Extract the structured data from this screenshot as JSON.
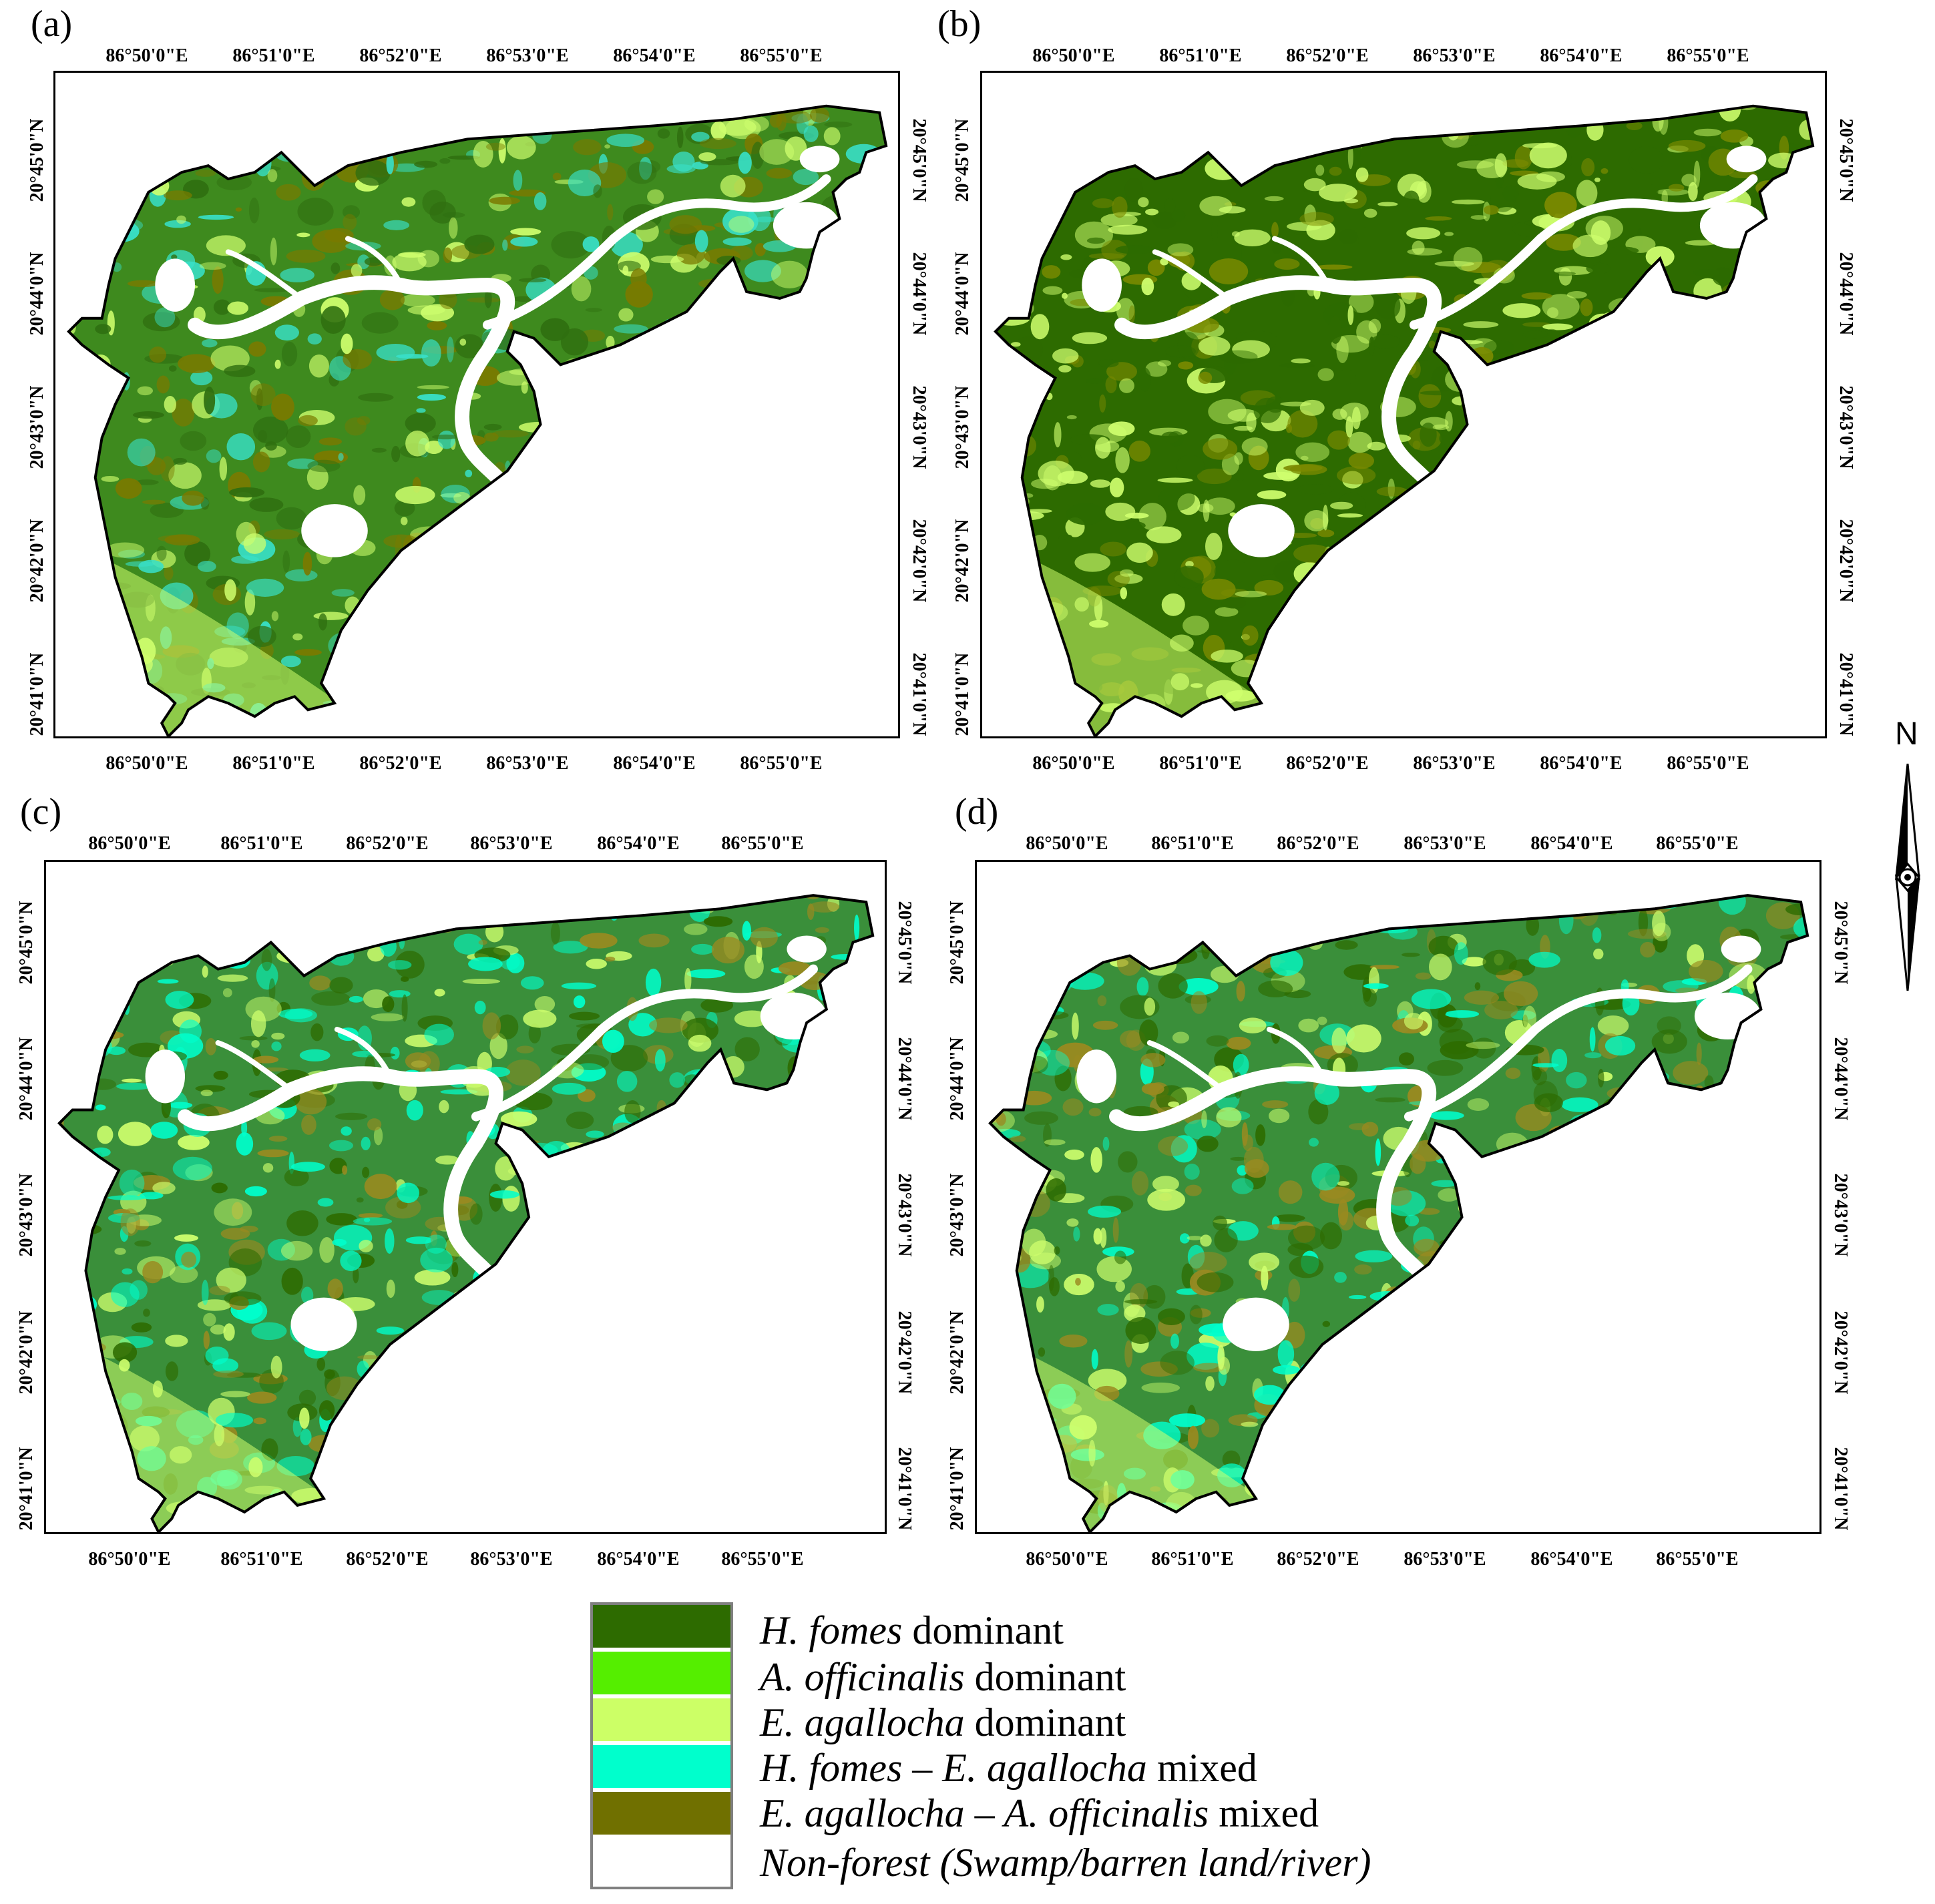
{
  "panels": [
    {
      "letter": "(a)",
      "palette": {
        "base": "#3e8a1e",
        "edge": "#cfff6e",
        "mix1": "#2f6f10",
        "mix2": "#38e0c8",
        "mix3": "#7a7a00"
      }
    },
    {
      "letter": "(b)",
      "palette": {
        "base": "#2d6b00",
        "edge": "#cfff6e",
        "mix1": "#cfff6e",
        "mix2": "#7a8a00",
        "mix3": "#2d6b00"
      }
    },
    {
      "letter": "(c)",
      "palette": {
        "base": "#3a8f3a",
        "edge": "#cfff6e",
        "mix1": "#2d6b00",
        "mix2": "#00ffcc",
        "mix3": "#9a8a20"
      }
    },
    {
      "letter": "(d)",
      "palette": {
        "base": "#3a8f3a",
        "edge": "#cfff6e",
        "mix1": "#2d6b00",
        "mix2": "#00ffcc",
        "mix3": "#9a8a20"
      }
    }
  ],
  "axes": {
    "lon_ticks": [
      "86°50'0\"E",
      "86°51'0\"E",
      "86°52'0\"E",
      "86°53'0\"E",
      "86°54'0\"E",
      "86°55'0\"E"
    ],
    "lat_ticks": [
      "20°41'0\"N",
      "20°42'0\"N",
      "20°43'0\"N",
      "20°44'0\"N",
      "20°45'0\"N"
    ]
  },
  "north_arrow": {
    "label": "N"
  },
  "legend": [
    {
      "italic": "H. fomes",
      "rest": " dominant",
      "color": "#2d6b00"
    },
    {
      "italic": "A. officinalis",
      "rest": " dominant",
      "color": "#55ee00"
    },
    {
      "italic": "E. agallocha",
      "rest": " dominant",
      "color": "#ccff66"
    },
    {
      "italic": "H. fomes – E. agallocha",
      "rest": " mixed",
      "color": "#00ffcc"
    },
    {
      "italic": "E. agallocha – A. officinalis",
      "rest": " mixed",
      "color": "#707000"
    },
    {
      "italic": "Non-forest (Swamp/barren land/river)",
      "rest": "",
      "color": "#ffffff"
    }
  ]
}
